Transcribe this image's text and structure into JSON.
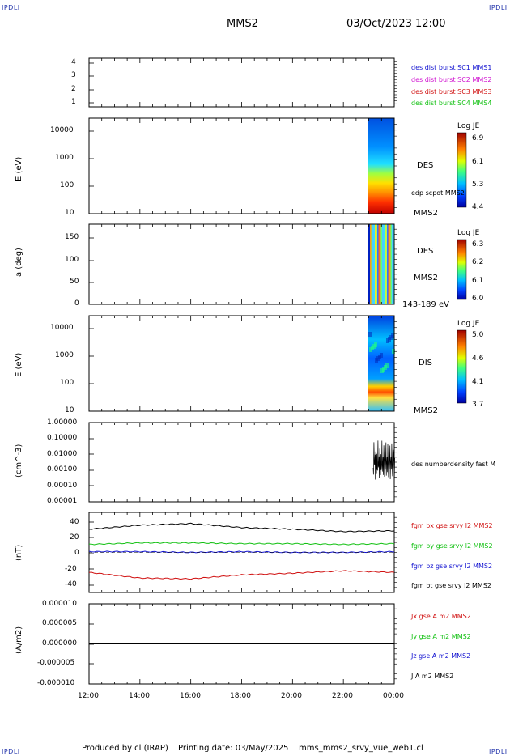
{
  "header": {
    "corner_label": "IPDLI",
    "spacecraft": "MMS2",
    "datetime": "03/Oct/2023 12:00"
  },
  "footer": {
    "produced_by": "Produced by cl (IRAP)",
    "printing_date": "Printing date: 03/May/2025",
    "file_name": "mms_mms2_srvy_vue_web1.cl"
  },
  "time_axis": {
    "ticks": [
      "12:00",
      "14:00",
      "16:00",
      "18:00",
      "20:00",
      "22:00",
      "00:00"
    ]
  },
  "panels": {
    "sc": {
      "ticks": [
        "4",
        "3",
        "2",
        "1"
      ],
      "legend": [
        {
          "text": "des dist burst SC1 MMS1",
          "color": "#1010d0"
        },
        {
          "text": "des dist burst SC2 MMS2",
          "color": "#d010d0"
        },
        {
          "text": "des dist burst SC3 MMS3",
          "color": "#d01010"
        },
        {
          "text": "des dist burst SC4 MMS4",
          "color": "#10c010"
        }
      ]
    },
    "des_energy": {
      "ylabel": "E (eV)",
      "ticks": [
        "10000",
        "1000",
        "100",
        "10"
      ],
      "instrument": "DES",
      "extra": "edp scpot MMS2",
      "spacecraft": "MMS2",
      "colorbar_title": "Log JE",
      "colorbar_ticks": [
        "6.9",
        "6.1",
        "5.3",
        "4.4"
      ]
    },
    "des_pitch": {
      "ylabel": "a (deg)",
      "ticks": [
        "150",
        "100",
        "50",
        "0"
      ],
      "instrument": "DES",
      "spacecraft": "MMS2",
      "energy_range": "143-189 eV",
      "colorbar_title": "Log JE",
      "colorbar_ticks": [
        "6.3",
        "6.2",
        "6.1",
        "6.0"
      ]
    },
    "dis_energy": {
      "ylabel": "E (eV)",
      "ticks": [
        "10000",
        "1000",
        "100",
        "10"
      ],
      "instrument": "DIS",
      "spacecraft": "MMS2",
      "colorbar_title": "Log JE",
      "colorbar_ticks": [
        "5.0",
        "4.6",
        "4.1",
        "3.7"
      ]
    },
    "density": {
      "ylabel": "(cm^-3)",
      "ticks": [
        "1.00000",
        "0.10000",
        "0.01000",
        "0.00100",
        "0.00010",
        "0.00001"
      ],
      "legend": "des numberdensity fast M"
    },
    "bfield": {
      "ylabel": "(nT)",
      "ticks": [
        "40",
        "20",
        "0",
        "-20",
        "-40"
      ],
      "legend": [
        {
          "text": "fgm bx gse srvy l2 MMS2",
          "color": "#d01010"
        },
        {
          "text": "fgm by gse srvy l2 MMS2",
          "color": "#10c010"
        },
        {
          "text": "fgm bz gse srvy l2 MMS2",
          "color": "#1010d0"
        },
        {
          "text": "fgm bt gse srvy l2 MMS2",
          "color": "#000000"
        }
      ]
    },
    "current": {
      "ylabel": "(A/m2)",
      "ticks": [
        "0.000010",
        "0.000005",
        "0.000000",
        "-0.000005",
        "-0.000010"
      ],
      "legend": [
        {
          "text": "Jx gse A m2 MMS2",
          "color": "#d01010"
        },
        {
          "text": "Jy gse A m2 MMS2",
          "color": "#10c010"
        },
        {
          "text": "Jz gse A m2 MMS2",
          "color": "#1010d0"
        },
        {
          "text": "J A m2 MMS2",
          "color": "#000000"
        }
      ]
    }
  },
  "chart_data": [
    {
      "type": "line",
      "title": "",
      "ylabel": "(nT)",
      "x": [
        "12:00",
        "14:00",
        "16:00",
        "18:00",
        "20:00",
        "22:00",
        "00:00"
      ],
      "ylim": [
        -50,
        50
      ],
      "series": [
        {
          "name": "fgm bx gse srvy l2 MMS2",
          "values": [
            -25,
            -32,
            -33,
            -28,
            -26,
            -23,
            -25
          ]
        },
        {
          "name": "fgm by gse srvy l2 MMS2",
          "values": [
            10,
            12,
            12,
            11,
            11,
            10,
            11
          ]
        },
        {
          "name": "fgm bz gse srvy l2 MMS2",
          "values": [
            1,
            1,
            0,
            1,
            0,
            0,
            1
          ]
        },
        {
          "name": "fgm bt gse srvy l2 MMS2",
          "values": [
            29,
            34,
            36,
            31,
            29,
            26,
            27
          ]
        }
      ]
    },
    {
      "type": "line",
      "ylabel": "(A/m2)",
      "x": [
        "12:00",
        "14:00",
        "16:00",
        "18:00",
        "20:00",
        "22:00",
        "00:00"
      ],
      "ylim": [
        -1e-05,
        1e-05
      ],
      "series": [
        {
          "name": "J A m2 MMS2",
          "values": [
            0,
            0,
            0,
            0,
            0,
            0,
            0
          ]
        }
      ]
    }
  ]
}
